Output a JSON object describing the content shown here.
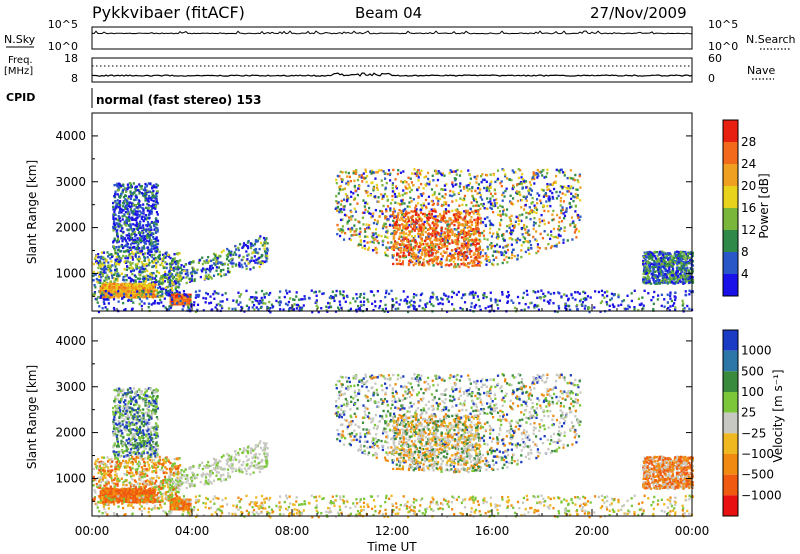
{
  "header": {
    "station": "Pykkvibaer (fitACF)",
    "beam": "Beam 04",
    "date": "27/Nov/2009"
  },
  "info_panel": {
    "nsky_label": "N.Sky",
    "nsearch_label": "N.Search",
    "freq_label_1": "Freq.",
    "freq_label_2": "[MHz]",
    "nave_label": "Nave",
    "cpid_label": "CPID",
    "cpid_text": "normal (fast stereo) 153",
    "noise_ticks": [
      "10^5",
      "10^0"
    ],
    "freq_ticks": [
      "18",
      "8"
    ],
    "nave_ticks": [
      "60",
      "0"
    ]
  },
  "colors": {
    "power": [
      "#1a10e8",
      "#2a57c8",
      "#2f8a4a",
      "#7ab63a",
      "#e8d21c",
      "#f0a020",
      "#f26a1a",
      "#e82010"
    ],
    "velocity": [
      "#1a3cc4",
      "#2d76a8",
      "#3a8a3e",
      "#7cc63a",
      "#c8c8c2",
      "#f0b820",
      "#f08a10",
      "#f05a10",
      "#e81010"
    ],
    "noise_line": "#000000"
  },
  "chart_data": [
    {
      "type": "heatmap",
      "panel": "power",
      "xlabel": "",
      "ylabel": "Slant Range [km]",
      "ylim": [
        180,
        4500
      ],
      "xlim_hours": [
        0,
        24
      ],
      "y_ticks": [
        1000,
        2000,
        3000,
        4000
      ],
      "colorbar_label": "Power [dB]",
      "colorbar_ticks": [
        "4",
        "8",
        "12",
        "16",
        "20",
        "24",
        "28"
      ],
      "colorbar_range": [
        0,
        32
      ]
    },
    {
      "type": "heatmap",
      "panel": "velocity",
      "xlabel": "Time UT",
      "ylabel": "Slant Range [km]",
      "ylim": [
        180,
        4500
      ],
      "xlim_hours": [
        0,
        24
      ],
      "x_ticks": [
        "00:00",
        "04:00",
        "08:00",
        "12:00",
        "16:00",
        "20:00",
        "00:00"
      ],
      "y_ticks": [
        1000,
        2000,
        3000,
        4000
      ],
      "colorbar_label": "Velocity [m s⁻¹]",
      "colorbar_ticks": [
        "1000",
        "500",
        "100",
        "25",
        "−25",
        "−100",
        "−500",
        "−1000"
      ]
    }
  ],
  "features": [
    {
      "name": "near-range early",
      "t": [
        0.0,
        3.5
      ],
      "r": [
        500,
        1500
      ],
      "power": 10,
      "pow_var": 10,
      "vel": [
        3,
        4,
        5,
        6,
        7
      ]
    },
    {
      "name": "near strong",
      "t": [
        0.3,
        2.5
      ],
      "r": [
        500,
        800
      ],
      "power": 22,
      "pow_var": 6,
      "vel": [
        6,
        7,
        7
      ]
    },
    {
      "name": "bright patch 0330",
      "t": [
        3.1,
        3.9
      ],
      "r": [
        350,
        560
      ],
      "power": 26,
      "pow_var": 4,
      "vel": [
        7,
        6
      ]
    },
    {
      "name": "band 0300-0700",
      "t": [
        3.0,
        7.0
      ],
      "r": [
        700,
        1900
      ],
      "power": 9,
      "pow_var": 9,
      "vel": [
        4,
        4,
        4,
        3
      ]
    },
    {
      "name": "early plumes",
      "t": [
        0.8,
        2.6
      ],
      "r": [
        1500,
        3000
      ],
      "power": 6,
      "pow_var": 8,
      "vel": [
        4,
        2,
        3,
        0
      ]
    },
    {
      "name": "main arc",
      "t": [
        9.7,
        19.5
      ],
      "r": [
        1100,
        3300
      ],
      "power": 14,
      "pow_var": 14,
      "vel": [
        4,
        4,
        4,
        2,
        3,
        6,
        0
      ]
    },
    {
      "name": "arc core",
      "t": [
        12.0,
        15.5
      ],
      "r": [
        1200,
        2400
      ],
      "power": 26,
      "pow_var": 6,
      "vel": [
        4,
        4,
        5,
        6,
        2
      ]
    },
    {
      "name": "late patch",
      "t": [
        22.0,
        24.0
      ],
      "r": [
        800,
        1500
      ],
      "power": 8,
      "pow_var": 8,
      "vel": [
        6,
        7,
        4
      ]
    },
    {
      "name": "ground clutter",
      "t": [
        0.0,
        24.0
      ],
      "r": [
        180,
        650
      ],
      "power": 4,
      "pow_var": 10,
      "vel": [
        3,
        4,
        5,
        6
      ]
    }
  ]
}
